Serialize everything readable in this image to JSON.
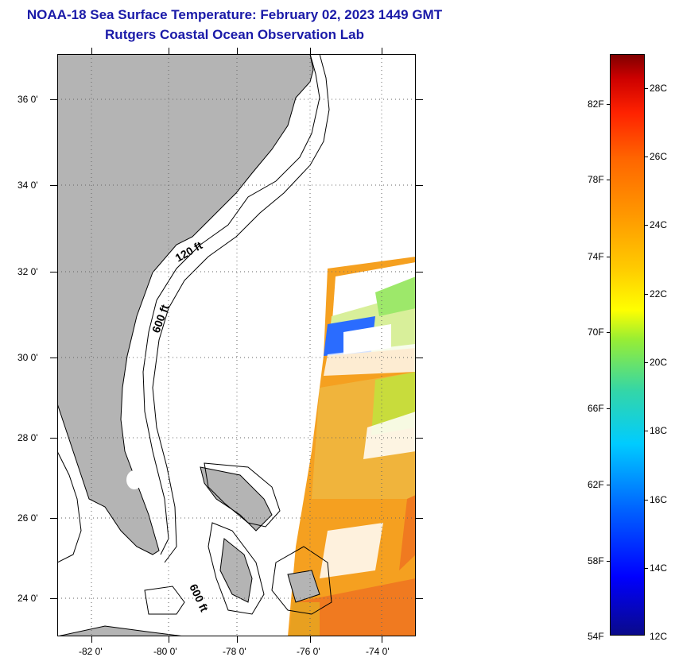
{
  "title": {
    "line1": "NOAA-18 Sea Surface Temperature:  February 02, 2023 1449 GMT",
    "line2": "Rutgers Coastal Ocean Observation Lab"
  },
  "map": {
    "lat_labels": [
      "36 0'",
      "34 0'",
      "32 0'",
      "30 0'",
      "28 0'",
      "26 0'",
      "24 0'"
    ],
    "lon_labels": [
      "-82 0'",
      "-80 0'",
      "-78 0'",
      "-76 0'",
      "-74 0'"
    ],
    "contours": [
      "120 ft",
      "600 ft",
      "600 ft"
    ],
    "colors": {
      "land": "#b4b4b4",
      "sea_unobserved": "#ffffff",
      "sst_warm": "#f5a020",
      "sst_mid": "#c8dc3c"
    }
  },
  "colorbar": {
    "fahrenheit": [
      "82F",
      "78F",
      "74F",
      "70F",
      "66F",
      "62F",
      "58F",
      "54F"
    ],
    "celsius": [
      "28C",
      "26C",
      "24C",
      "22C",
      "20C",
      "18C",
      "16C",
      "14C",
      "12C"
    ]
  }
}
